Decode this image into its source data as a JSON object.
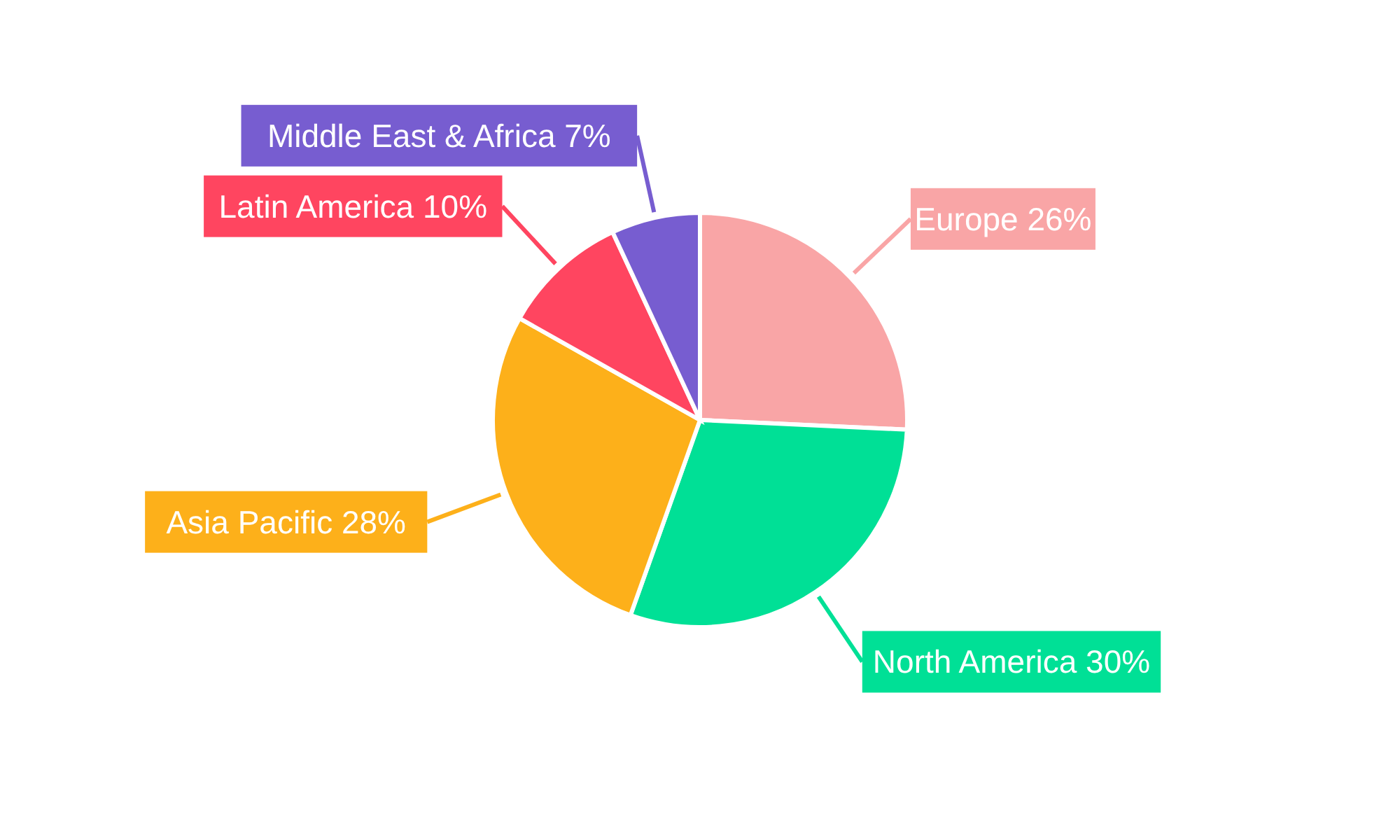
{
  "chart_data": {
    "type": "pie",
    "categories": [
      "Europe",
      "North America",
      "Asia Pacific",
      "Latin America",
      "Middle East & Africa"
    ],
    "values": [
      26,
      30,
      28,
      10,
      7
    ],
    "value_labels": [
      "26%",
      "30%",
      "28%",
      "10%",
      "7%"
    ],
    "colors": [
      "#f9a5a6",
      "#00e096",
      "#fdb01a",
      "#ff4560",
      "#775dd0"
    ]
  }
}
